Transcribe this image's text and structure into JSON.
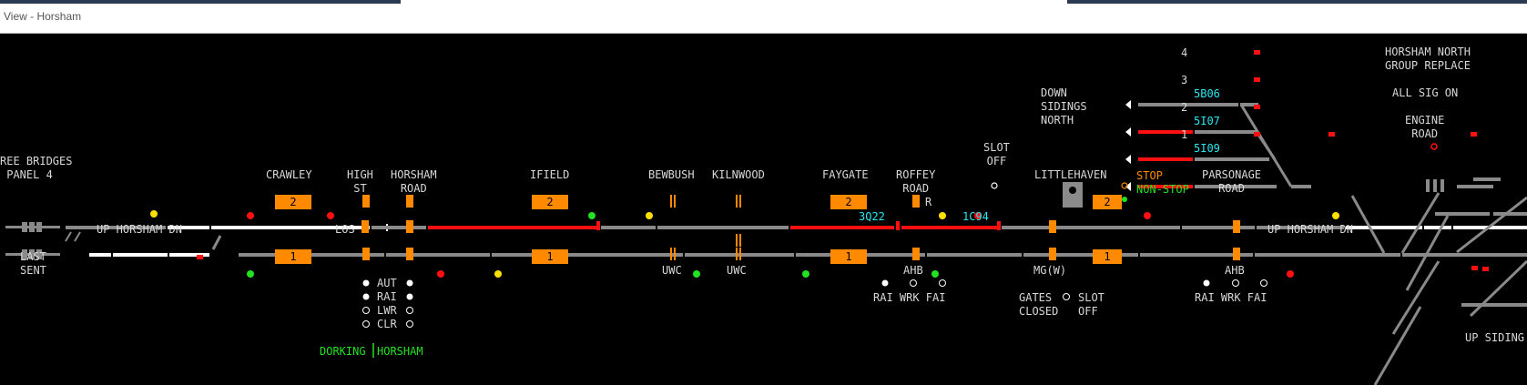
{
  "window": {
    "title": "View - Horsham"
  },
  "labels": {
    "three_bridges": "REE BRIDGES\n PANEL 4",
    "crawley": "CRAWLEY",
    "high_st": "HIGH\nST",
    "horsham_road": "HORSHAM\nROAD",
    "ifield": "IFIELD",
    "bewbush": "BEWBUSH",
    "kilnwood": "KILNWOOD",
    "faygate": "FAYGATE",
    "roffey_road": "ROFFEY\nROAD",
    "slot_off": "SLOT\nOFF",
    "littlehaven": "LITTLEHAVEN",
    "parsonage_road": "PARSONAGE\nROAD",
    "down_sidings_north": "DOWN\nSIDINGS\nNORTH",
    "horsham_north_group_replace": "HORSHAM NORTH\nGROUP REPLACE",
    "all_sig_on": "ALL SIG ON",
    "engine_road": "ENGINE\nROAD",
    "last_sent": "LAST\nSENT",
    "up_horsham_dn_1": "UP HORSHAM DN",
    "up_horsham_dn_2": "UP HORSHAM DN",
    "los": "LOS",
    "uwc_1": "UWC",
    "uwc_2": "UWC",
    "ahb_1": "AHB",
    "ahb_2": "AHB",
    "mgw": "MG(W)",
    "rai_wrk_fai_1": "RAI WRK FAI",
    "rai_wrk_fai_2": "RAI WRK FAI",
    "gates_closed": "GATES\nCLOSED",
    "slot_off_2": "SLOT\nOFF",
    "up_siding": "UP SIDING",
    "stop": "STOP",
    "non_stop": "NON-STOP",
    "dorking": "DORKING",
    "horsham": "HORSHAM",
    "aut": "AUT",
    "rai": "RAI",
    "lwr": "LWR",
    "clr": "CLR",
    "road_4": "4",
    "road_3": "3",
    "road_2": "2",
    "road_1": "1",
    "r_roffey": "R"
  },
  "train_descriptions": {
    "sb06": "5B06",
    "si07": "5I07",
    "si09": "5I09",
    "q3q22": "3Q22",
    "c1c94": "1C94"
  },
  "berths": {
    "crawley_up": "2",
    "crawley_dn": "1",
    "ifield_up": "2",
    "ifield_dn": "1",
    "faygate_up": "2",
    "faygate_dn": "1",
    "littlehaven_up": "2",
    "littlehaven_dn": "1"
  },
  "colors": {
    "track_idle": "#8a8a8a",
    "track_route": "#ffffff",
    "track_occupied": "#ff1010",
    "berth": "#ff8a00",
    "td_text": "#28e8f0",
    "signal_red": "#ff1010",
    "signal_green": "#22e222",
    "signal_yellow": "#ffe000",
    "panel_bg": "#000000"
  }
}
